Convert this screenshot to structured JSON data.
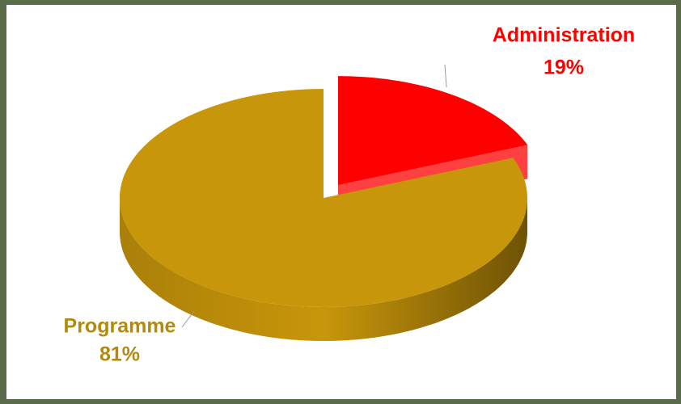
{
  "chart_data": {
    "type": "pie",
    "categories": [
      "Administration",
      "Programme"
    ],
    "values": [
      19,
      81
    ],
    "value_labels": [
      "19%",
      "81%"
    ],
    "colors": [
      "#ff0000",
      "#c8960a"
    ],
    "label_colors": [
      "#ff0000",
      "#b38a0c"
    ],
    "exploded": [
      true,
      false
    ]
  }
}
